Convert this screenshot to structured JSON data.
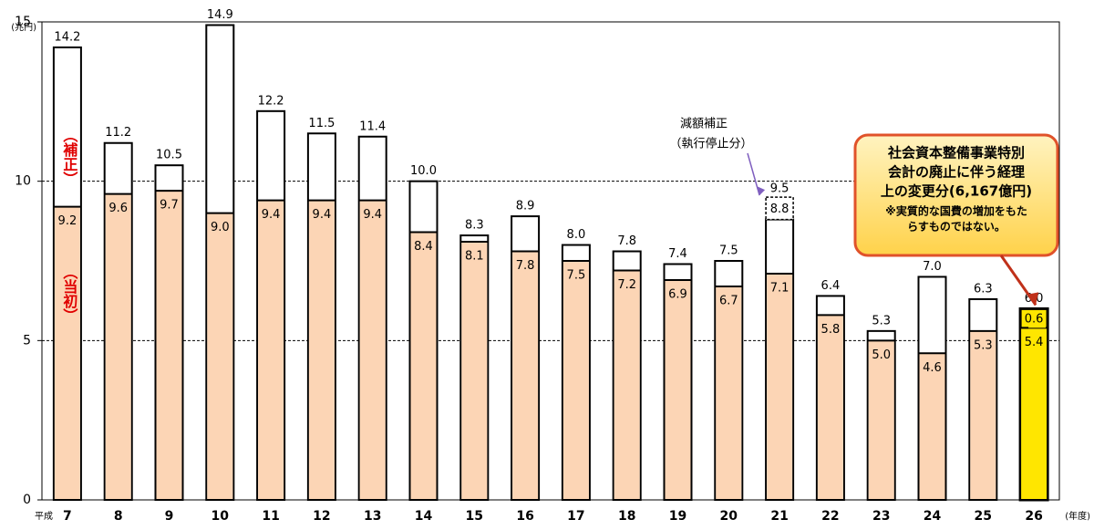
{
  "chart_data": {
    "type": "bar",
    "y_unit": "(兆円)",
    "x_prefix": "平成",
    "x_unit": "(年度)",
    "categories": [
      "7",
      "8",
      "9",
      "10",
      "11",
      "12",
      "13",
      "14",
      "15",
      "16",
      "17",
      "18",
      "19",
      "20",
      "21",
      "22",
      "23",
      "24",
      "25",
      "26"
    ],
    "series": [
      {
        "name": "（当初）",
        "color": "#fcd5b5",
        "values": [
          9.2,
          9.6,
          9.7,
          9.0,
          9.4,
          9.4,
          9.4,
          8.4,
          8.1,
          7.8,
          7.5,
          7.2,
          6.9,
          6.7,
          7.1,
          5.8,
          5.0,
          4.6,
          5.3,
          5.4
        ],
        "value_labels": [
          "9.2",
          "9.6",
          "9.7",
          "9.0",
          "9.4",
          "9.4",
          "9.4",
          "8.4",
          "8.1",
          "7.8",
          "7.5",
          "7.2",
          "6.9",
          "6.7",
          "7.1",
          "5.8",
          "5.0",
          "4.6",
          "5.3",
          "5.4"
        ]
      },
      {
        "name": "（補正）",
        "color": "#ffffff",
        "values": [
          14.2,
          11.2,
          10.5,
          14.9,
          12.2,
          11.5,
          11.4,
          10.0,
          8.3,
          8.9,
          8.0,
          7.8,
          7.4,
          7.5,
          8.8,
          6.4,
          5.3,
          7.0,
          6.3,
          6.0
        ],
        "value_labels": [
          "14.2",
          "11.2",
          "10.5",
          "14.9",
          "12.2",
          "11.5",
          "11.4",
          "10.0",
          "8.3",
          "8.9",
          "8.0",
          "7.8",
          "7.4",
          "7.5",
          "8.8",
          "6.4",
          "5.3",
          "7.0",
          "6.3",
          "6.0"
        ]
      }
    ],
    "ylim": [
      0,
      15
    ],
    "yticks": [
      0,
      5,
      10,
      15
    ],
    "grid": true,
    "reduction": {
      "category": "21",
      "value": 9.5,
      "text": [
        "減額補正",
        "（執行停止分）"
      ]
    },
    "transfer": {
      "category": "26",
      "value": 0.6,
      "color": "#ffe600",
      "text": [
        "社会資本整備事業特別",
        "会計の廃止に伴う経理",
        "上の変更分(6,167億円)"
      ],
      "note": [
        "※実質的な国費の増加をもた",
        "らすものではない。"
      ]
    }
  }
}
